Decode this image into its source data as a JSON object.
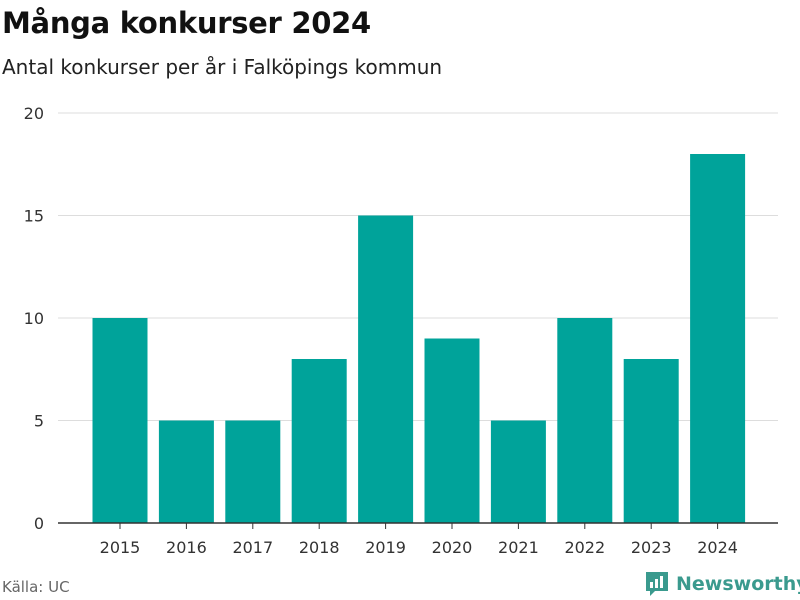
{
  "header": {
    "title": "Många konkurser 2024",
    "subtitle": "Antal konkurser per år i Falköpings kommun"
  },
  "footer": {
    "source": "Källa: UC",
    "brand": "Newsworthy",
    "brand_icon": "newsworthy-logo-icon"
  },
  "colors": {
    "bar": "#00a39a",
    "grid": "#dddddd",
    "axis": "#333333",
    "brand": "#3a9a8e"
  },
  "chart_data": {
    "type": "bar",
    "title": "Många konkurser 2024",
    "subtitle": "Antal konkurser per år i Falköpings kommun",
    "categories": [
      "2015",
      "2016",
      "2017",
      "2018",
      "2019",
      "2020",
      "2021",
      "2022",
      "2023",
      "2024"
    ],
    "values": [
      10,
      5,
      5,
      8,
      15,
      9,
      5,
      10,
      8,
      18
    ],
    "xlabel": "",
    "ylabel": "",
    "ylim": [
      0,
      20
    ],
    "yticks": [
      0,
      5,
      10,
      15,
      20
    ],
    "grid": true,
    "legend": "none"
  }
}
